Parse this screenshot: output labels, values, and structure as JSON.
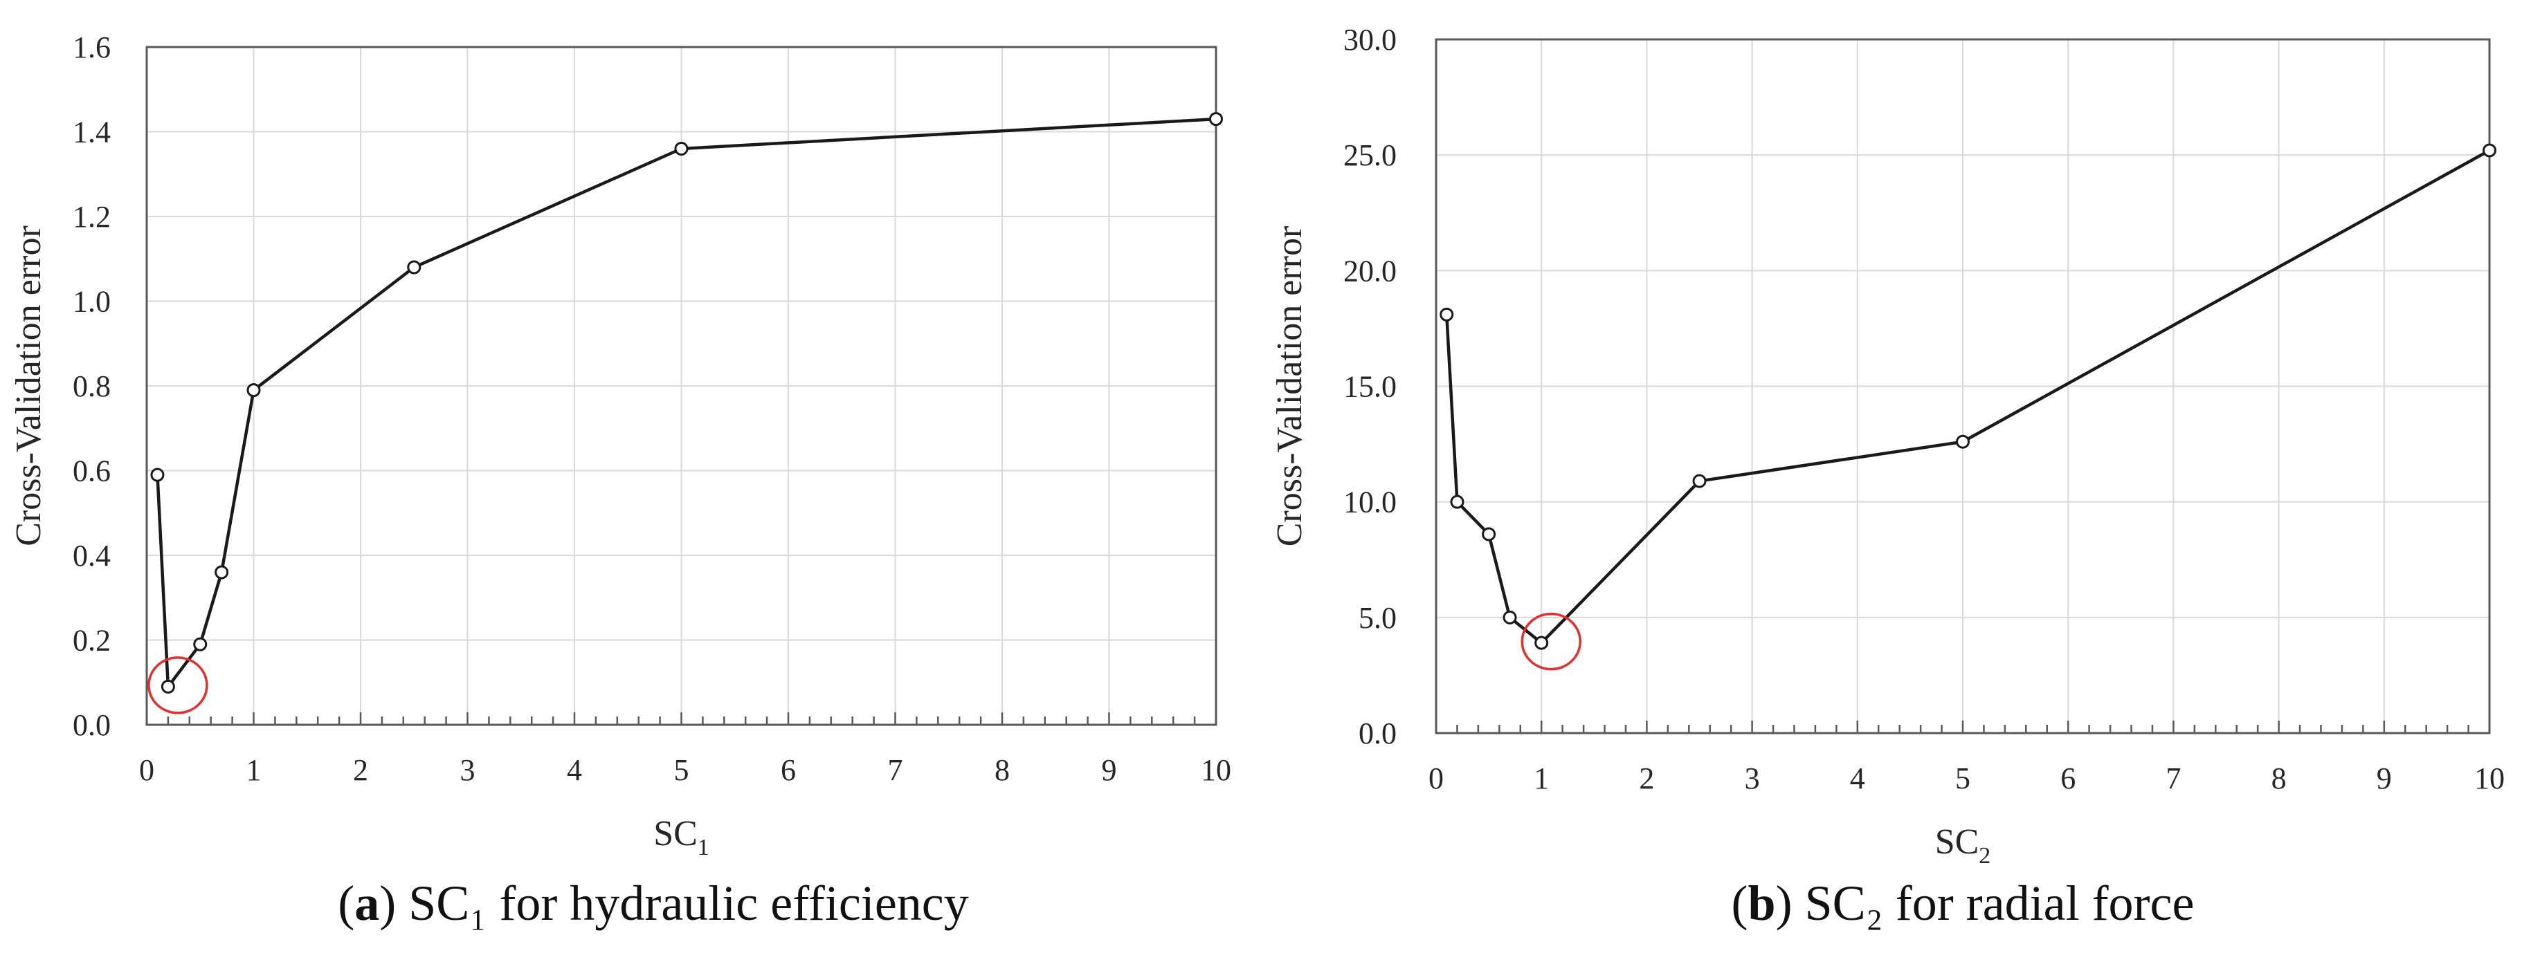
{
  "colors": {
    "line": "#1a1a1a",
    "grid": "#d9d9d9",
    "axis": "#595959",
    "marker_fill": "#ffffff",
    "highlight": "#e03030"
  },
  "chart_data": [
    {
      "type": "line",
      "panel_id": "a",
      "x": [
        0.1,
        0.2,
        0.5,
        0.7,
        1,
        2.5,
        5,
        10
      ],
      "series": [
        {
          "name": "Cross-Validation error",
          "values": [
            0.59,
            0.09,
            0.19,
            0.36,
            0.79,
            1.08,
            1.36,
            1.43
          ]
        }
      ],
      "highlight_point": {
        "x": 0.2,
        "y": 0.09
      },
      "xlabel_main": "SC",
      "xlabel_sub": "1",
      "ylabel": "Cross-Validation error",
      "xlim": [
        0,
        10
      ],
      "ylim": [
        0,
        1.6
      ],
      "xticks": [
        0,
        1,
        2,
        3,
        4,
        5,
        6,
        7,
        8,
        9,
        10
      ],
      "xtick_labels": [
        "0",
        "1",
        "2",
        "3",
        "4",
        "5",
        "6",
        "7",
        "8",
        "9",
        "10"
      ],
      "yticks": [
        0,
        0.2,
        0.4,
        0.6,
        0.8,
        1.0,
        1.2,
        1.4,
        1.6
      ],
      "ytick_labels": [
        "0.0",
        "0.2",
        "0.4",
        "0.6",
        "0.8",
        "1.0",
        "1.2",
        "1.4",
        "1.6"
      ],
      "minor_x_step": 0.2,
      "grid": true,
      "caption_letter": "a",
      "caption_rest": " SC₁ for hydraulic efficiency"
    },
    {
      "type": "line",
      "panel_id": "b",
      "x": [
        0.1,
        0.2,
        0.5,
        0.7,
        1,
        2.5,
        5,
        10
      ],
      "series": [
        {
          "name": "Cross-Validation error",
          "values": [
            18.1,
            10.0,
            8.6,
            5.0,
            3.9,
            10.9,
            12.6,
            25.2
          ]
        }
      ],
      "highlight_point": {
        "x": 1,
        "y": 3.9
      },
      "xlabel_main": "SC",
      "xlabel_sub": "2",
      "ylabel": "Cross-Validation error",
      "xlim": [
        0,
        10
      ],
      "ylim": [
        0,
        30
      ],
      "xticks": [
        0,
        1,
        2,
        3,
        4,
        5,
        6,
        7,
        8,
        9,
        10
      ],
      "xtick_labels": [
        "0",
        "1",
        "2",
        "3",
        "4",
        "5",
        "6",
        "7",
        "8",
        "9",
        "10"
      ],
      "yticks": [
        0,
        5,
        10,
        15,
        20,
        25,
        30
      ],
      "ytick_labels": [
        "0.0",
        "5.0",
        "10.0",
        "15.0",
        "20.0",
        "25.0",
        "30.0"
      ],
      "minor_x_step": 0.2,
      "grid": true,
      "caption_letter": "b",
      "caption_rest": " SC₂ for radial force"
    }
  ]
}
